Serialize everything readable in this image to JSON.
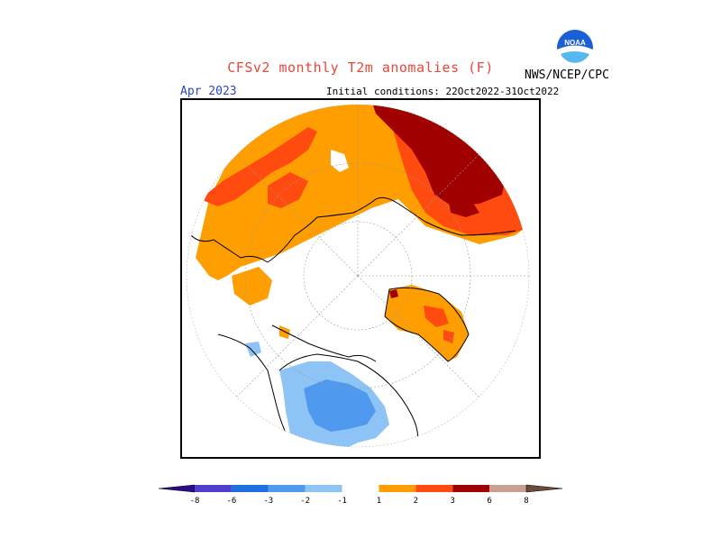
{
  "header": {
    "title": "CFSv2 monthly T2m anomalies (F)",
    "month": "Apr 2023",
    "initial_conditions": "Initial conditions: 22Oct2022-31Oct2022",
    "agency": "NWS/NCEP/CPC",
    "logo_text": "NOAA"
  },
  "colors": {
    "title": "#e8473a",
    "month": "#2a46c8",
    "anomaly_1_2": "#ff9e00",
    "anomaly_2_3": "#ff4a10",
    "anomaly_3_6": "#a00000",
    "anomaly_neg1_neg2": "#8ec3f5",
    "anomaly_neg2_neg3": "#4f9aee"
  },
  "legend": {
    "tick_labels": [
      "-8",
      "-6",
      "-3",
      "-2",
      "-1",
      "1",
      "2",
      "3",
      "6",
      "8"
    ],
    "bins": [
      {
        "color": "#2c0a8a"
      },
      {
        "color": "#4f3fcf"
      },
      {
        "color": "#1f6fe0"
      },
      {
        "color": "#4f9aee"
      },
      {
        "color": "#8ec3f5"
      },
      {
        "color": "#ffffff"
      },
      {
        "color": "#ff9e00"
      },
      {
        "color": "#ff4a10"
      },
      {
        "color": "#a00000"
      },
      {
        "color": "#c9a090"
      },
      {
        "color": "#6e4a3a"
      }
    ]
  },
  "map": {
    "projection": "north-polar-stereographic",
    "regions": [
      {
        "name": "Eurasia north and east",
        "anomaly": "3 to 6",
        "color": "#a00000"
      },
      {
        "name": "Northern Russia and Siberia",
        "anomaly": "1 to 3",
        "color": "#ff9e00"
      },
      {
        "name": "Greenland",
        "anomaly": "1 to 3",
        "color": "#ff9e00"
      },
      {
        "name": "Western Canada and northwestern US",
        "anomaly": "-1 to -3",
        "color": "#4f9aee"
      }
    ]
  }
}
